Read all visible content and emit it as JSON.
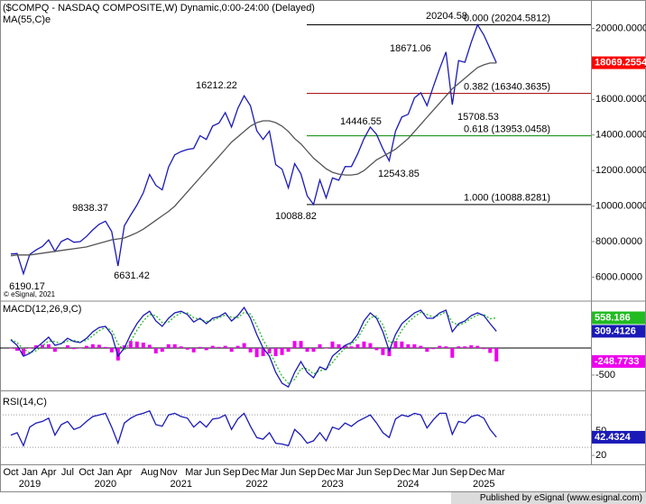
{
  "title": "($COMPQ - NASDAQ COMPOSITE,W) Dynamic,0:00-24:00 (Delayed)",
  "copyright": "© eSignal, 2021",
  "footer": "Published by eSignal (www.esignal.com)",
  "chart_data": [
    {
      "type": "line",
      "name": "price",
      "x": [
        "2018-10",
        "2018-11",
        "2018-12",
        "2019-01",
        "2019-02",
        "2019-03",
        "2019-04",
        "2019-05",
        "2019-06",
        "2019-07",
        "2019-08",
        "2019-09",
        "2019-10",
        "2019-11",
        "2019-12",
        "2020-01",
        "2020-02",
        "2020-03",
        "2020-04",
        "2020-05",
        "2020-06",
        "2020-07",
        "2020-08",
        "2020-09",
        "2020-10",
        "2020-11",
        "2020-12",
        "2021-01",
        "2021-02",
        "2021-03",
        "2021-04",
        "2021-05",
        "2021-06",
        "2021-07",
        "2021-08",
        "2021-09",
        "2021-10",
        "2021-11",
        "2021-12",
        "2022-01",
        "2022-02",
        "2022-03",
        "2022-04",
        "2022-05",
        "2022-06",
        "2022-07",
        "2022-08",
        "2022-09",
        "2022-10",
        "2022-11",
        "2022-12",
        "2023-01",
        "2023-02",
        "2023-03",
        "2023-04",
        "2023-05",
        "2023-06",
        "2023-07",
        "2023-08",
        "2023-09",
        "2023-10",
        "2023-11",
        "2023-12",
        "2024-01",
        "2024-02",
        "2024-03",
        "2024-04",
        "2024-05",
        "2024-06",
        "2024-07",
        "2024-08",
        "2024-09",
        "2024-10",
        "2024-11",
        "2024-12",
        "2025-01",
        "2025-02",
        "2025-03"
      ],
      "xticks": [
        {
          "value": "2018-10",
          "label": "Oct"
        },
        {
          "value": "2019-01",
          "label": "Jan"
        },
        {
          "value": "2019-04",
          "label": "Apr"
        },
        {
          "value": "2019-07",
          "label": "Jul"
        },
        {
          "value": "2019-10",
          "label": "Oct"
        },
        {
          "value": "2020-01",
          "label": "Jan"
        },
        {
          "value": "2020-04",
          "label": "Apr"
        },
        {
          "value": "2020-08",
          "label": "Aug"
        },
        {
          "value": "2020-11",
          "label": "Nov"
        },
        {
          "value": "2021-03",
          "label": "Mar"
        },
        {
          "value": "2021-06",
          "label": "Jun"
        },
        {
          "value": "2021-09",
          "label": "Sep"
        },
        {
          "value": "2021-12",
          "label": "Dec"
        },
        {
          "value": "2022-03",
          "label": "Mar"
        },
        {
          "value": "2022-06",
          "label": "Jun"
        },
        {
          "value": "2022-09",
          "label": "Sep"
        },
        {
          "value": "2022-12",
          "label": "Dec"
        },
        {
          "value": "2023-03",
          "label": "Mar"
        },
        {
          "value": "2023-06",
          "label": "Jun"
        },
        {
          "value": "2023-09",
          "label": "Sep"
        },
        {
          "value": "2023-12",
          "label": "Dec"
        },
        {
          "value": "2024-03",
          "label": "Mar"
        },
        {
          "value": "2024-06",
          "label": "Jun"
        },
        {
          "value": "2024-09",
          "label": "Sep"
        },
        {
          "value": "2024-12",
          "label": "Dec"
        },
        {
          "value": "2025-03",
          "label": "Mar"
        }
      ],
      "yearticks": [
        {
          "value": "2019-01",
          "label": "2019"
        },
        {
          "value": "2020-01",
          "label": "2020"
        },
        {
          "value": "2021-01",
          "label": "2021"
        },
        {
          "value": "2022-01",
          "label": "2022"
        },
        {
          "value": "2023-01",
          "label": "2023"
        },
        {
          "value": "2024-01",
          "label": "2024"
        },
        {
          "value": "2025-01",
          "label": "2025"
        }
      ],
      "ylim": [
        4700,
        21600
      ],
      "yticks": [
        {
          "value": 20000,
          "label": "20000.0000"
        },
        {
          "value": 18000,
          "label": "18000.0000"
        },
        {
          "value": 16000,
          "label": "16000.0000"
        },
        {
          "value": 14000,
          "label": "14000.0000"
        },
        {
          "value": 12000,
          "label": "12000.0000"
        },
        {
          "value": 10000,
          "label": "10000.0000"
        },
        {
          "value": 8000,
          "label": "8000.0000"
        },
        {
          "value": 6000,
          "label": "6000.0000"
        }
      ],
      "series": [
        {
          "color": "#1a1ab8",
          "tag_color": "#ff0000",
          "values": [
            7305,
            7330,
            6190,
            7281,
            7532,
            7729,
            8095,
            7453,
            8006,
            8175,
            7963,
            7999,
            8292,
            8665,
            8972,
            9150,
            8567,
            6631,
            8889,
            9489,
            10058,
            10745,
            11775,
            11167,
            10911,
            12198,
            12888,
            13070,
            13192,
            13246,
            13962,
            13748,
            14504,
            14672,
            15259,
            14448,
            15498,
            16212,
            15645,
            14239,
            13751,
            14220,
            12335,
            12081,
            11028,
            12391,
            11816,
            10576,
            10089,
            11468,
            10466,
            11584,
            11456,
            12222,
            12227,
            12935,
            13788,
            14446,
            14035,
            13219,
            12544,
            14226,
            15011,
            15164,
            16092,
            16379,
            15658,
            16735,
            17733,
            18671,
            15709,
            18189,
            18095,
            19218,
            20205,
            19627,
            18847,
            18069.2554
          ]
        },
        {
          "name": "MA(55,C)e",
          "color": "#555555",
          "values": [
            7200,
            7250,
            7250,
            7250,
            7300,
            7350,
            7400,
            7450,
            7500,
            7550,
            7600,
            7650,
            7700,
            7800,
            7900,
            8000,
            8100,
            8150,
            8200,
            8350,
            8500,
            8700,
            8950,
            9200,
            9450,
            9700,
            10000,
            10400,
            10800,
            11200,
            11600,
            12000,
            12400,
            12800,
            13200,
            13600,
            13900,
            14200,
            14500,
            14700,
            14800,
            14800,
            14700,
            14500,
            14200,
            13800,
            13500,
            13100,
            12700,
            12400,
            12100,
            11900,
            11800,
            11750,
            11750,
            11800,
            12000,
            12300,
            12600,
            12800,
            13000,
            13200,
            13500,
            13800,
            14200,
            14600,
            15000,
            15400,
            15800,
            16200,
            16600,
            16900,
            17200,
            17500,
            17800,
            17950,
            18050,
            18050
          ]
        }
      ],
      "levels": [
        {
          "label": "0.000 (20204.5812)",
          "value": 20204.5812,
          "color": "#000000"
        },
        {
          "label": "0.382 (16340.3635)",
          "value": 16340.3635,
          "color": "#a00000"
        },
        {
          "label": "0.618 (13953.0458)",
          "value": 13953.0458,
          "color": "#008800"
        },
        {
          "label": "1.000 (10088.8281)",
          "value": 10088.8281,
          "color": "#000000"
        }
      ],
      "annotations": [
        20204.58,
        18671.06,
        16212.22,
        14446.55,
        15708.53,
        12543.85,
        10088.82,
        9838.37,
        6631.42,
        6190.17
      ]
    },
    {
      "type": "line",
      "name": "MACD(12,26,9,C)",
      "ylim": [
        -767,
        850
      ],
      "yticks": [
        -500
      ],
      "zero_line": true,
      "series": [
        {
          "type": "bar",
          "color": "#ee00ee",
          "tag_color": "#ee00ee",
          "values": [
            -10,
            -50,
            -130,
            -10,
            50,
            60,
            70,
            -70,
            0,
            50,
            -20,
            -10,
            40,
            70,
            60,
            20,
            -80,
            -230,
            50,
            130,
            120,
            100,
            60,
            -100,
            -70,
            70,
            70,
            30,
            -30,
            -80,
            20,
            -40,
            40,
            20,
            40,
            -70,
            40,
            90,
            -80,
            -170,
            -150,
            -100,
            -150,
            -130,
            -70,
            130,
            130,
            -70,
            -70,
            70,
            -10,
            120,
            70,
            50,
            30,
            70,
            120,
            90,
            -40,
            -130,
            -150,
            130,
            120,
            70,
            70,
            40,
            -70,
            -20,
            40,
            30,
            -180,
            30,
            30,
            50,
            40,
            -20,
            -90,
            -248.7733
          ]
        },
        {
          "color": "#22bb22",
          "tag_color": "#22bb22",
          "style": "dotted",
          "values": [
            160,
            100,
            -20,
            -90,
            -50,
            40,
            130,
            120,
            80,
            130,
            140,
            110,
            140,
            230,
            320,
            380,
            330,
            80,
            -50,
            120,
            330,
            500,
            620,
            600,
            470,
            480,
            580,
            650,
            650,
            560,
            530,
            490,
            510,
            560,
            610,
            570,
            560,
            660,
            630,
            420,
            150,
            -50,
            -300,
            -520,
            -650,
            -580,
            -380,
            -380,
            -480,
            -420,
            -390,
            -270,
            -120,
            0,
            70,
            180,
            380,
            560,
            590,
            430,
            100,
            120,
            330,
            480,
            580,
            660,
            620,
            570,
            610,
            670,
            480,
            420,
            470,
            550,
            610,
            620,
            540,
            558.186
          ]
        },
        {
          "color": "#1a1ab8",
          "tag_color": "#1a1ab8",
          "values": [
            150,
            50,
            -150,
            -100,
            0,
            100,
            200,
            50,
            80,
            180,
            120,
            100,
            180,
            300,
            380,
            400,
            250,
            -150,
            0,
            250,
            450,
            600,
            680,
            500,
            400,
            550,
            650,
            680,
            620,
            480,
            550,
            450,
            550,
            580,
            650,
            500,
            600,
            750,
            550,
            250,
            0,
            -150,
            -450,
            -650,
            -720,
            -450,
            -250,
            -450,
            -550,
            -350,
            -400,
            -150,
            -50,
            50,
            100,
            250,
            500,
            650,
            550,
            300,
            -50,
            250,
            450,
            550,
            650,
            700,
            550,
            550,
            650,
            700,
            300,
            450,
            500,
            600,
            650,
            600,
            450,
            309.4126
          ]
        }
      ]
    },
    {
      "type": "line",
      "name": "RSI(14,C)",
      "ylim": [
        9,
        98
      ],
      "yticks": [
        50,
        20
      ],
      "levels": [
        70,
        30
      ],
      "series": [
        {
          "color": "#1a1ab8",
          "tag_color": "#1a1ab8",
          "values": [
            45,
            48,
            32,
            55,
            60,
            62,
            66,
            45,
            58,
            62,
            52,
            55,
            62,
            68,
            70,
            72,
            55,
            35,
            60,
            66,
            70,
            72,
            75,
            58,
            56,
            70,
            72,
            68,
            66,
            55,
            62,
            55,
            65,
            66,
            70,
            52,
            65,
            72,
            56,
            42,
            40,
            48,
            35,
            34,
            32,
            52,
            45,
            35,
            38,
            48,
            38,
            55,
            52,
            60,
            56,
            62,
            66,
            70,
            60,
            48,
            42,
            65,
            70,
            68,
            72,
            70,
            54,
            64,
            72,
            72,
            46,
            62,
            60,
            68,
            70,
            66,
            52,
            42.4324
          ]
        }
      ]
    }
  ]
}
